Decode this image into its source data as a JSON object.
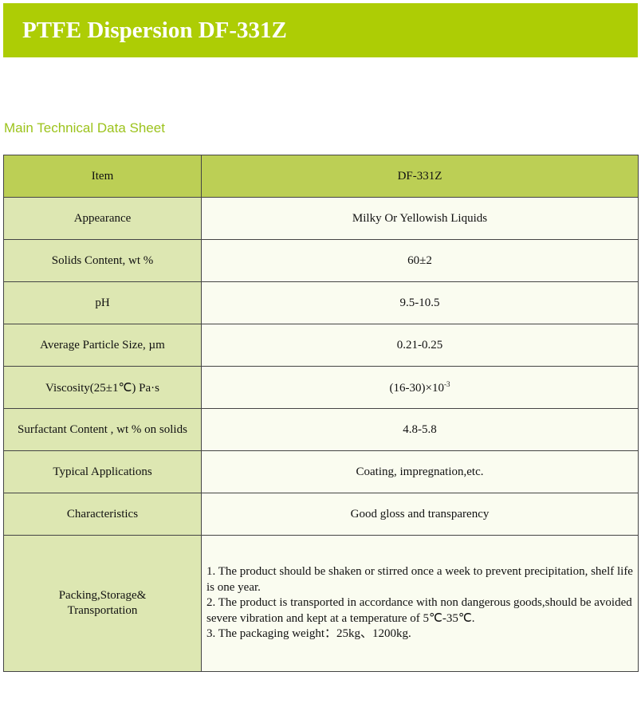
{
  "header": {
    "title": "PTFE Dispersion DF-331Z",
    "color": "#adcd05"
  },
  "section_title": "Main Technical Data Sheet",
  "table": {
    "columns": [
      "Item",
      "DF-331Z"
    ],
    "rows": [
      {
        "item": "Appearance",
        "value": "Milky Or Yellowish Liquids"
      },
      {
        "item": "Solids Content, wt %",
        "value": "60±2"
      },
      {
        "item": "pH",
        "value": "9.5-10.5"
      },
      {
        "item": "Average Particle Size, µm",
        "value": "0.21-0.25"
      },
      {
        "item": "Viscosity(25±1℃) Pa·s",
        "value": "(16-30)×10",
        "value_sup": "-3"
      },
      {
        "item": "Surfactant Content , wt % on solids",
        "value": "4.8-5.8"
      },
      {
        "item": "Typical Applications",
        "value": "Coating, impregnation,etc."
      },
      {
        "item": "Characteristics",
        "value": "Good gloss and transparency"
      }
    ],
    "packing": {
      "item": "Packing,Storage& Transportation",
      "notes": [
        "1. The product should be shaken or stirred once a week to prevent precipitation, shelf life is one year.",
        "2. The product is transported in accordance with non dangerous goods,should be avoided severe vibration and kept at a temperature of 5℃-35℃.",
        "3. The packaging weight：25kg、1200kg."
      ]
    }
  }
}
